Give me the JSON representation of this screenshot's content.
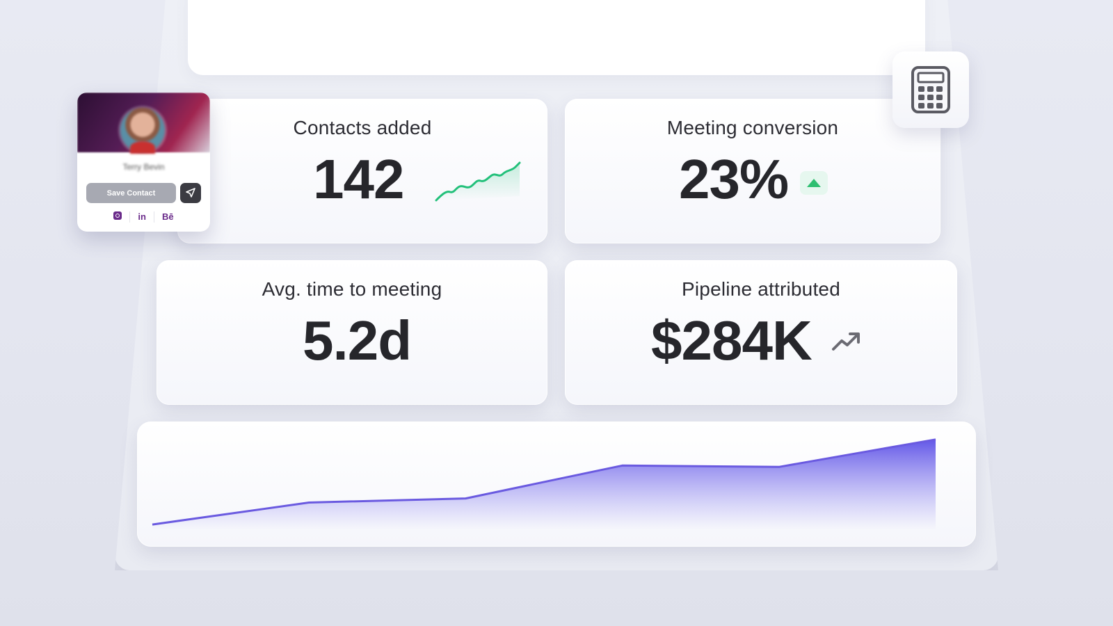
{
  "metrics": {
    "contacts": {
      "label": "Contacts added",
      "value": "142"
    },
    "conversion": {
      "label": "Meeting conversion",
      "value": "23%",
      "trend": "up"
    },
    "avg_time": {
      "label": "Avg. time to meeting",
      "value": "5.2d"
    },
    "pipeline": {
      "label": "Pipeline attributed",
      "value": "$284K",
      "trend": "up"
    }
  },
  "contact_card": {
    "name": "Terry Bevin",
    "save_label": "Save Contact",
    "socials": [
      {
        "icon": "instagram-icon",
        "label": ""
      },
      {
        "icon": "linkedin-icon",
        "label": "in"
      },
      {
        "icon": "behance-icon",
        "label": "Bē"
      }
    ]
  },
  "icons": {
    "calculator": "calculator-icon",
    "send": "send-icon",
    "trend": "trending-up-icon",
    "sparkline": "sparkline-icon"
  },
  "colors": {
    "accent_purple": "#6a5ae0",
    "sparkline_green": "#22c07a",
    "up_green": "#2fbf71",
    "brand_purple": "#6a2b8a"
  },
  "chart_data": {
    "type": "area",
    "x": [
      0,
      1,
      2,
      3,
      4,
      5
    ],
    "values": [
      2,
      18,
      21,
      45,
      44,
      64
    ],
    "ylim": [
      0,
      70
    ]
  }
}
